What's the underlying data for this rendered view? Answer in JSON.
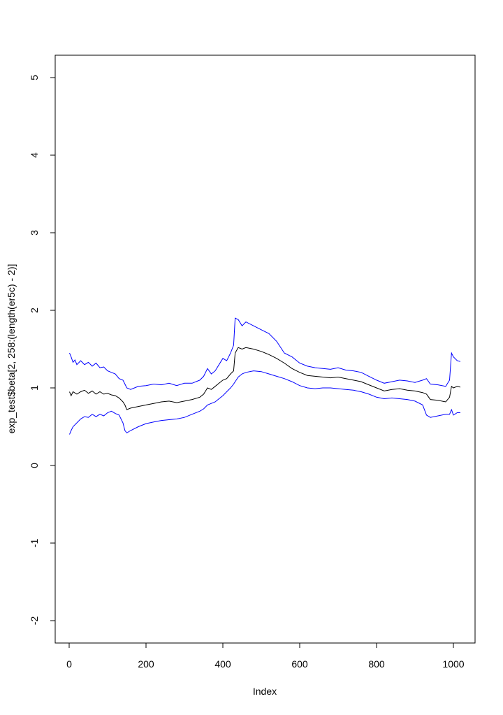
{
  "chart_data": {
    "type": "line",
    "title": "",
    "xlabel": "Index",
    "ylabel": "exp_test$beta[2, 258:(length(er5c) - 2)]",
    "xlim": [
      0,
      1018
    ],
    "ylim": [
      -2.3,
      5.2
    ],
    "x_ticks": [
      0,
      200,
      400,
      600,
      800,
      1000
    ],
    "y_ticks": [
      -2,
      -1,
      0,
      1,
      2,
      3,
      4,
      5
    ],
    "grid": false,
    "legend": "none",
    "series": [
      {
        "color": "#0000ff",
        "points": [
          [
            1,
            1.45
          ],
          [
            5,
            1.4
          ],
          [
            10,
            1.33
          ],
          [
            15,
            1.36
          ],
          [
            20,
            1.3
          ],
          [
            30,
            1.35
          ],
          [
            40,
            1.3
          ],
          [
            50,
            1.33
          ],
          [
            60,
            1.28
          ],
          [
            70,
            1.32
          ],
          [
            80,
            1.26
          ],
          [
            90,
            1.27
          ],
          [
            100,
            1.22
          ],
          [
            110,
            1.2
          ],
          [
            120,
            1.18
          ],
          [
            130,
            1.12
          ],
          [
            140,
            1.1
          ],
          [
            145,
            1.05
          ],
          [
            150,
            1.0
          ],
          [
            160,
            0.98
          ],
          [
            170,
            1.0
          ],
          [
            180,
            1.02
          ],
          [
            200,
            1.03
          ],
          [
            220,
            1.05
          ],
          [
            240,
            1.04
          ],
          [
            260,
            1.06
          ],
          [
            280,
            1.03
          ],
          [
            300,
            1.06
          ],
          [
            320,
            1.06
          ],
          [
            340,
            1.1
          ],
          [
            350,
            1.15
          ],
          [
            360,
            1.25
          ],
          [
            370,
            1.18
          ],
          [
            380,
            1.22
          ],
          [
            390,
            1.3
          ],
          [
            400,
            1.38
          ],
          [
            410,
            1.35
          ],
          [
            420,
            1.45
          ],
          [
            428,
            1.55
          ],
          [
            432,
            1.9
          ],
          [
            440,
            1.88
          ],
          [
            450,
            1.8
          ],
          [
            460,
            1.85
          ],
          [
            480,
            1.8
          ],
          [
            500,
            1.75
          ],
          [
            520,
            1.7
          ],
          [
            540,
            1.6
          ],
          [
            560,
            1.45
          ],
          [
            580,
            1.4
          ],
          [
            600,
            1.32
          ],
          [
            620,
            1.28
          ],
          [
            640,
            1.26
          ],
          [
            660,
            1.25
          ],
          [
            680,
            1.24
          ],
          [
            700,
            1.26
          ],
          [
            720,
            1.23
          ],
          [
            740,
            1.22
          ],
          [
            760,
            1.2
          ],
          [
            780,
            1.15
          ],
          [
            800,
            1.1
          ],
          [
            820,
            1.06
          ],
          [
            840,
            1.08
          ],
          [
            860,
            1.1
          ],
          [
            880,
            1.09
          ],
          [
            900,
            1.07
          ],
          [
            920,
            1.1
          ],
          [
            930,
            1.12
          ],
          [
            940,
            1.05
          ],
          [
            960,
            1.04
          ],
          [
            980,
            1.02
          ],
          [
            990,
            1.1
          ],
          [
            995,
            1.45
          ],
          [
            1000,
            1.4
          ],
          [
            1010,
            1.35
          ],
          [
            1018,
            1.34
          ]
        ]
      },
      {
        "color": "#000000",
        "points": [
          [
            1,
            0.95
          ],
          [
            5,
            0.9
          ],
          [
            10,
            0.95
          ],
          [
            20,
            0.92
          ],
          [
            30,
            0.95
          ],
          [
            40,
            0.97
          ],
          [
            50,
            0.93
          ],
          [
            60,
            0.96
          ],
          [
            70,
            0.92
          ],
          [
            80,
            0.95
          ],
          [
            90,
            0.92
          ],
          [
            100,
            0.93
          ],
          [
            110,
            0.91
          ],
          [
            120,
            0.9
          ],
          [
            130,
            0.87
          ],
          [
            140,
            0.82
          ],
          [
            145,
            0.78
          ],
          [
            150,
            0.72
          ],
          [
            160,
            0.74
          ],
          [
            180,
            0.76
          ],
          [
            200,
            0.78
          ],
          [
            220,
            0.8
          ],
          [
            240,
            0.82
          ],
          [
            260,
            0.83
          ],
          [
            280,
            0.81
          ],
          [
            300,
            0.83
          ],
          [
            320,
            0.85
          ],
          [
            340,
            0.88
          ],
          [
            350,
            0.92
          ],
          [
            360,
            1.0
          ],
          [
            370,
            0.98
          ],
          [
            380,
            1.02
          ],
          [
            390,
            1.06
          ],
          [
            400,
            1.1
          ],
          [
            410,
            1.12
          ],
          [
            420,
            1.18
          ],
          [
            428,
            1.22
          ],
          [
            432,
            1.45
          ],
          [
            440,
            1.52
          ],
          [
            450,
            1.5
          ],
          [
            460,
            1.52
          ],
          [
            480,
            1.5
          ],
          [
            500,
            1.47
          ],
          [
            520,
            1.43
          ],
          [
            540,
            1.38
          ],
          [
            560,
            1.32
          ],
          [
            580,
            1.25
          ],
          [
            600,
            1.2
          ],
          [
            620,
            1.16
          ],
          [
            640,
            1.15
          ],
          [
            660,
            1.14
          ],
          [
            680,
            1.13
          ],
          [
            700,
            1.14
          ],
          [
            720,
            1.12
          ],
          [
            740,
            1.1
          ],
          [
            760,
            1.08
          ],
          [
            780,
            1.04
          ],
          [
            800,
            1.0
          ],
          [
            820,
            0.96
          ],
          [
            840,
            0.98
          ],
          [
            860,
            0.99
          ],
          [
            880,
            0.97
          ],
          [
            900,
            0.96
          ],
          [
            920,
            0.94
          ],
          [
            930,
            0.92
          ],
          [
            940,
            0.85
          ],
          [
            960,
            0.84
          ],
          [
            980,
            0.82
          ],
          [
            990,
            0.88
          ],
          [
            995,
            1.02
          ],
          [
            1000,
            1.0
          ],
          [
            1010,
            1.02
          ],
          [
            1018,
            1.01
          ]
        ]
      },
      {
        "color": "#0000ff",
        "points": [
          [
            1,
            0.4
          ],
          [
            5,
            0.45
          ],
          [
            10,
            0.5
          ],
          [
            20,
            0.55
          ],
          [
            30,
            0.6
          ],
          [
            40,
            0.63
          ],
          [
            50,
            0.62
          ],
          [
            60,
            0.66
          ],
          [
            70,
            0.63
          ],
          [
            80,
            0.66
          ],
          [
            90,
            0.64
          ],
          [
            100,
            0.68
          ],
          [
            110,
            0.7
          ],
          [
            120,
            0.67
          ],
          [
            130,
            0.65
          ],
          [
            140,
            0.55
          ],
          [
            145,
            0.45
          ],
          [
            150,
            0.42
          ],
          [
            160,
            0.45
          ],
          [
            180,
            0.5
          ],
          [
            200,
            0.54
          ],
          [
            220,
            0.56
          ],
          [
            240,
            0.58
          ],
          [
            260,
            0.59
          ],
          [
            280,
            0.6
          ],
          [
            300,
            0.62
          ],
          [
            320,
            0.66
          ],
          [
            340,
            0.7
          ],
          [
            350,
            0.73
          ],
          [
            360,
            0.78
          ],
          [
            370,
            0.8
          ],
          [
            380,
            0.82
          ],
          [
            390,
            0.86
          ],
          [
            400,
            0.9
          ],
          [
            410,
            0.95
          ],
          [
            420,
            1.0
          ],
          [
            428,
            1.05
          ],
          [
            432,
            1.08
          ],
          [
            440,
            1.14
          ],
          [
            450,
            1.18
          ],
          [
            460,
            1.2
          ],
          [
            480,
            1.22
          ],
          [
            500,
            1.21
          ],
          [
            520,
            1.18
          ],
          [
            540,
            1.15
          ],
          [
            560,
            1.12
          ],
          [
            580,
            1.08
          ],
          [
            600,
            1.03
          ],
          [
            620,
            1.0
          ],
          [
            640,
            0.99
          ],
          [
            660,
            1.0
          ],
          [
            680,
            1.0
          ],
          [
            700,
            0.99
          ],
          [
            720,
            0.98
          ],
          [
            740,
            0.97
          ],
          [
            760,
            0.95
          ],
          [
            780,
            0.92
          ],
          [
            800,
            0.88
          ],
          [
            820,
            0.86
          ],
          [
            840,
            0.87
          ],
          [
            860,
            0.86
          ],
          [
            880,
            0.85
          ],
          [
            900,
            0.83
          ],
          [
            920,
            0.78
          ],
          [
            930,
            0.65
          ],
          [
            940,
            0.62
          ],
          [
            960,
            0.64
          ],
          [
            980,
            0.66
          ],
          [
            990,
            0.66
          ],
          [
            995,
            0.72
          ],
          [
            1000,
            0.65
          ],
          [
            1010,
            0.68
          ],
          [
            1018,
            0.68
          ]
        ]
      }
    ]
  }
}
